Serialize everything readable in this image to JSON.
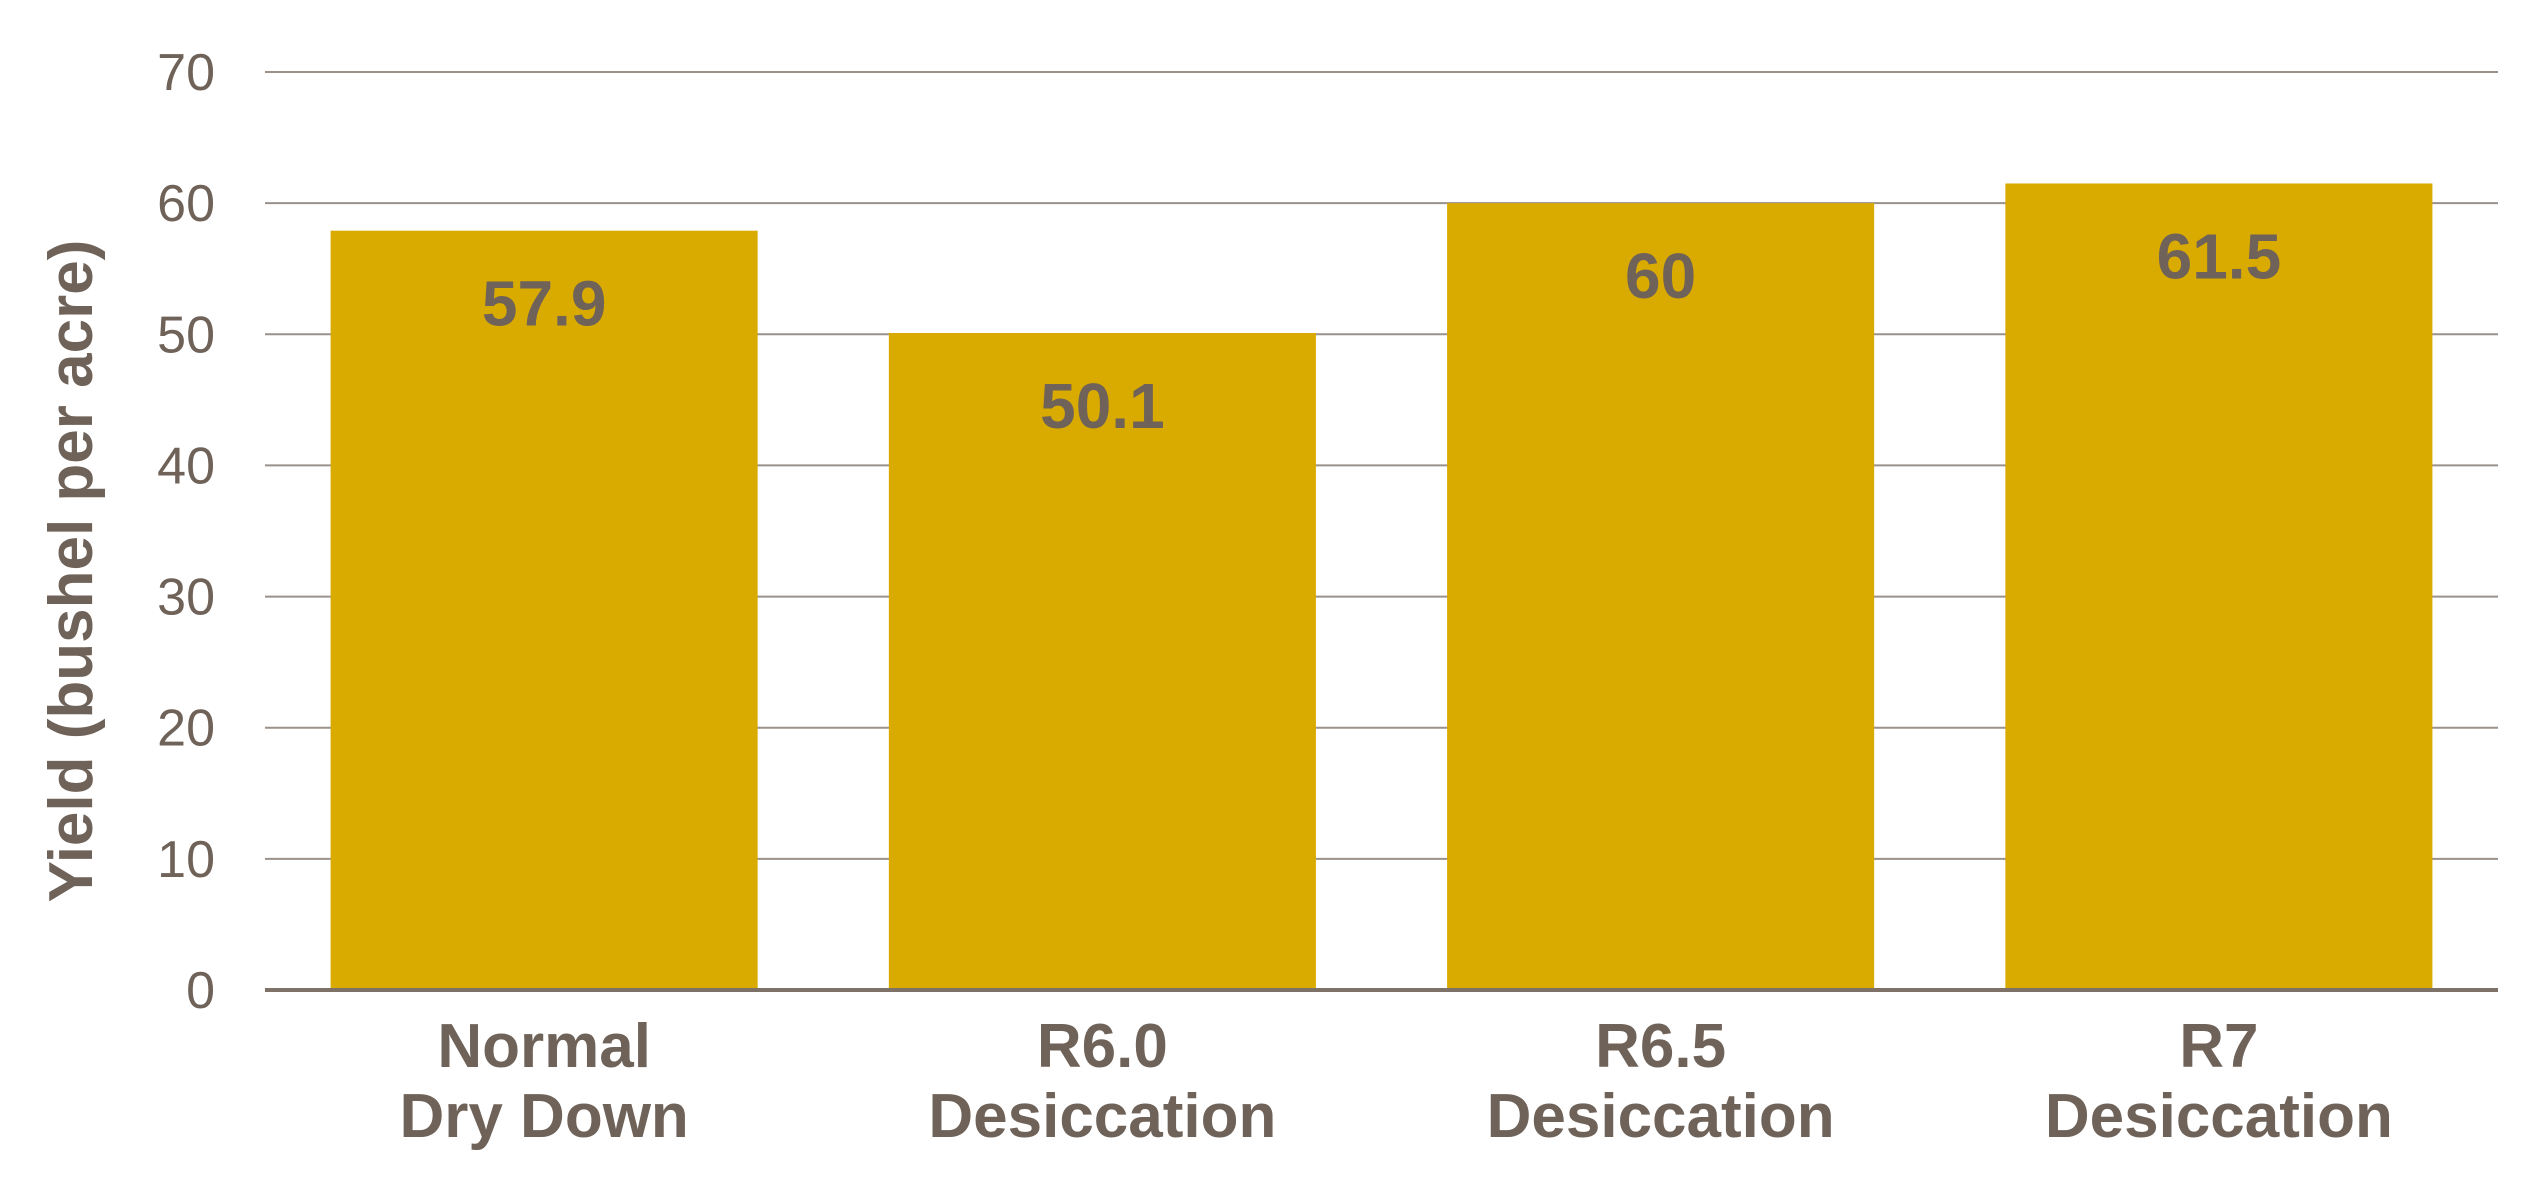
{
  "chart_data": {
    "type": "bar",
    "categories": [
      [
        "Normal",
        "Dry Down"
      ],
      [
        "R6.0",
        "Desiccation"
      ],
      [
        "R6.5",
        "Desiccation"
      ],
      [
        "R7",
        "Desiccation"
      ]
    ],
    "values": [
      57.9,
      50.1,
      60,
      61.5
    ],
    "data_labels": [
      "57.9",
      "50.1",
      "60",
      "61.5"
    ],
    "ylabel": "Yield (bushel per acre)",
    "ylim": [
      0,
      70
    ],
    "yticks": [
      0,
      10,
      20,
      30,
      40,
      50,
      60,
      70
    ],
    "grid": true,
    "legend": "none",
    "colors": {
      "bar": "#d9aa00",
      "text": "#6f6259",
      "grid": "#9a918a",
      "axis": "#7d7168"
    }
  }
}
